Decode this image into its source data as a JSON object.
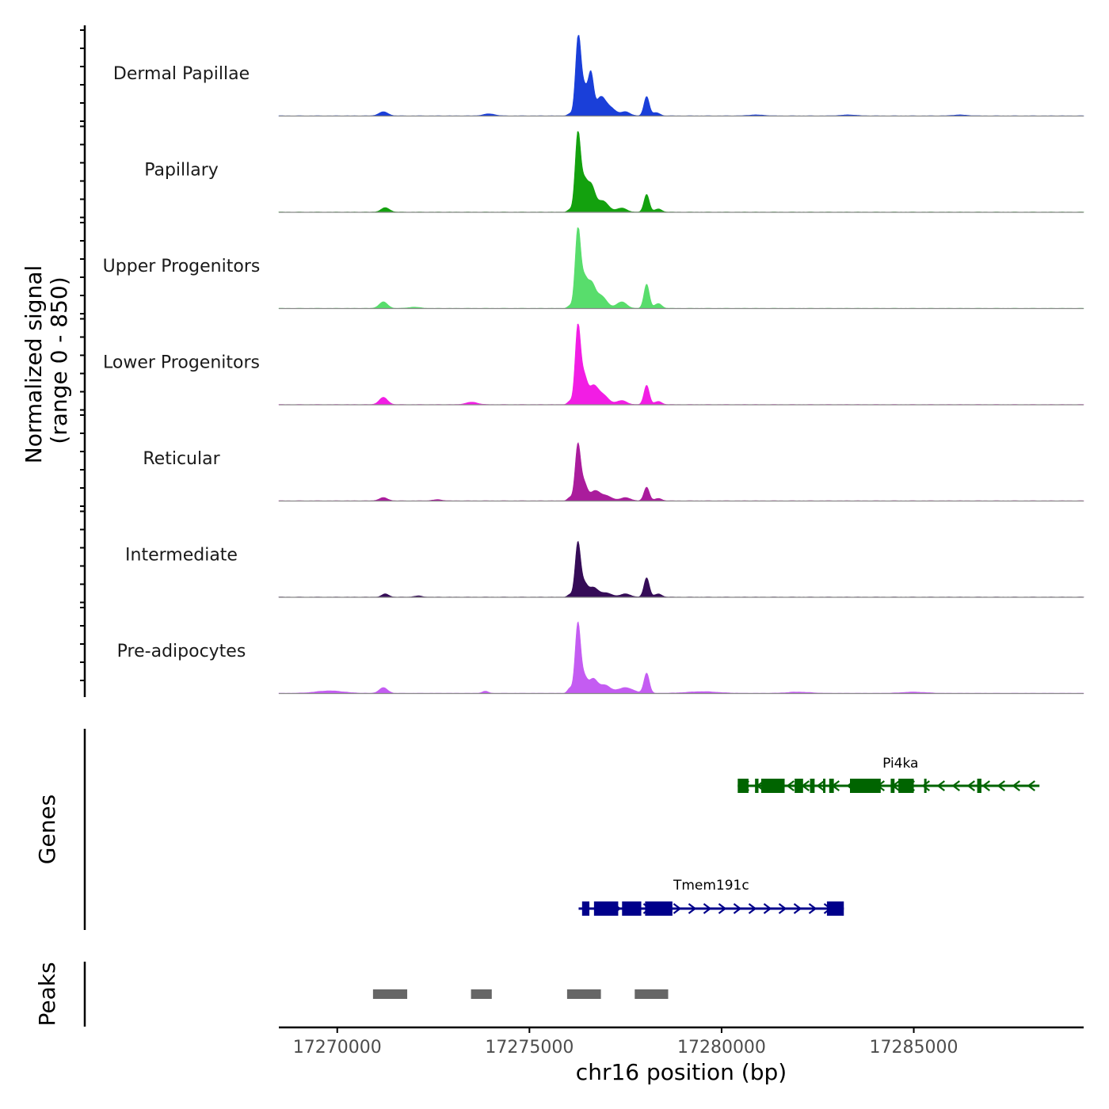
{
  "chart_data": {
    "type": "area",
    "title": "",
    "xlabel": "chr16 position (bp)",
    "ylabel": "Normalized signal\n(range 0 - 850)",
    "signal_range": [
      0,
      850
    ],
    "xlim": [
      16868480,
      16889420
    ],
    "x_tick_values": [
      16870000,
      16875000,
      16880000,
      16885000
    ],
    "x_tick_labels": [
      "17270000",
      "17275000",
      "17280000",
      "17285000"
    ],
    "tracks": [
      {
        "name": "Dermal Papillae",
        "color": "#1a3fd9",
        "peaks": [
          [
            16871200,
            0.05,
            120
          ],
          [
            16873950,
            0.025,
            150
          ],
          [
            16876050,
            0.025,
            60
          ],
          [
            16876270,
            0.98,
            70
          ],
          [
            16876430,
            0.33,
            80
          ],
          [
            16876600,
            0.5,
            70
          ],
          [
            16876850,
            0.22,
            120
          ],
          [
            16877100,
            0.1,
            140
          ],
          [
            16877500,
            0.05,
            120
          ],
          [
            16878050,
            0.24,
            70
          ],
          [
            16878300,
            0.04,
            90
          ],
          [
            16880900,
            0.012,
            200
          ],
          [
            16883300,
            0.012,
            200
          ],
          [
            16886200,
            0.012,
            180
          ]
        ],
        "base": 0.004
      },
      {
        "name": "Papillary",
        "color": "#13a10e",
        "peaks": [
          [
            16871250,
            0.055,
            110
          ],
          [
            16876050,
            0.03,
            60
          ],
          [
            16876260,
            0.97,
            70
          ],
          [
            16876420,
            0.33,
            80
          ],
          [
            16876600,
            0.32,
            100
          ],
          [
            16876900,
            0.14,
            150
          ],
          [
            16877400,
            0.05,
            130
          ],
          [
            16878050,
            0.22,
            70
          ],
          [
            16878350,
            0.04,
            90
          ]
        ],
        "base": 0.004
      },
      {
        "name": "Upper Progenitors",
        "color": "#58dd6c",
        "peaks": [
          [
            16871200,
            0.08,
            110
          ],
          [
            16872000,
            0.015,
            150
          ],
          [
            16876050,
            0.03,
            60
          ],
          [
            16876260,
            0.98,
            70
          ],
          [
            16876420,
            0.32,
            80
          ],
          [
            16876600,
            0.28,
            100
          ],
          [
            16876850,
            0.16,
            150
          ],
          [
            16877400,
            0.08,
            130
          ],
          [
            16878050,
            0.3,
            70
          ],
          [
            16878350,
            0.06,
            90
          ]
        ],
        "base": 0.004
      },
      {
        "name": "Lower Progenitors",
        "color": "#f21de4",
        "peaks": [
          [
            16871200,
            0.09,
            110
          ],
          [
            16873500,
            0.03,
            150
          ],
          [
            16876050,
            0.04,
            60
          ],
          [
            16876260,
            0.97,
            70
          ],
          [
            16876420,
            0.32,
            80
          ],
          [
            16876650,
            0.21,
            120
          ],
          [
            16876900,
            0.12,
            150
          ],
          [
            16877400,
            0.05,
            130
          ],
          [
            16878050,
            0.24,
            70
          ],
          [
            16878350,
            0.04,
            90
          ]
        ],
        "base": 0.004
      },
      {
        "name": "Reticular",
        "color": "#aa1c9c",
        "peaks": [
          [
            16871200,
            0.04,
            110
          ],
          [
            16872600,
            0.015,
            120
          ],
          [
            16876050,
            0.04,
            60
          ],
          [
            16876260,
            0.69,
            70
          ],
          [
            16876420,
            0.21,
            80
          ],
          [
            16876700,
            0.12,
            130
          ],
          [
            16877000,
            0.06,
            150
          ],
          [
            16877500,
            0.04,
            130
          ],
          [
            16878050,
            0.17,
            70
          ],
          [
            16878350,
            0.03,
            90
          ]
        ],
        "base": 0.004
      },
      {
        "name": "Intermediate",
        "color": "#350c57",
        "peaks": [
          [
            16871250,
            0.04,
            90
          ],
          [
            16872100,
            0.015,
            100
          ],
          [
            16876050,
            0.03,
            60
          ],
          [
            16876260,
            0.67,
            70
          ],
          [
            16876420,
            0.15,
            80
          ],
          [
            16876650,
            0.12,
            130
          ],
          [
            16877000,
            0.05,
            150
          ],
          [
            16877500,
            0.04,
            130
          ],
          [
            16878050,
            0.24,
            70
          ],
          [
            16878350,
            0.04,
            90
          ]
        ],
        "base": 0.004
      },
      {
        "name": "Pre-adipocytes",
        "color": "#c45cf2",
        "peaks": [
          [
            16869800,
            0.03,
            350
          ],
          [
            16871200,
            0.07,
            110
          ],
          [
            16873850,
            0.025,
            80
          ],
          [
            16876050,
            0.06,
            60
          ],
          [
            16876260,
            0.86,
            70
          ],
          [
            16876420,
            0.19,
            80
          ],
          [
            16876650,
            0.17,
            110
          ],
          [
            16876950,
            0.1,
            150
          ],
          [
            16877500,
            0.07,
            200
          ],
          [
            16878050,
            0.25,
            70
          ],
          [
            16879500,
            0.02,
            400
          ],
          [
            16882000,
            0.015,
            300
          ],
          [
            16885000,
            0.015,
            300
          ]
        ],
        "base": 0.005
      }
    ],
    "genes": [
      {
        "name": "Pi4ka",
        "strand": "-",
        "color": "#006400",
        "start": 16880420,
        "end": 16888270,
        "exons": [
          [
            16880420,
            16880700
          ],
          [
            16880870,
            16880960
          ],
          [
            16881030,
            16881640
          ],
          [
            16881900,
            16882120
          ],
          [
            16882300,
            16882420
          ],
          [
            16882640,
            16882700
          ],
          [
            16882800,
            16882920
          ],
          [
            16883340,
            16884140
          ],
          [
            16884400,
            16884500
          ],
          [
            16884600,
            16885000
          ],
          [
            16885270,
            16885330
          ],
          [
            16886650,
            16886760
          ]
        ]
      },
      {
        "name": "Tmem191c",
        "strand": "+",
        "color": "#00008b",
        "start": 16876280,
        "end": 16883180,
        "exons": [
          [
            16876370,
            16876560
          ],
          [
            16876680,
            16877310
          ],
          [
            16877410,
            16877910
          ],
          [
            16878010,
            16878720
          ],
          [
            16882740,
            16883180
          ]
        ]
      }
    ],
    "peaks_track": [
      [
        16870930,
        16871820
      ],
      [
        16873480,
        16874020
      ],
      [
        16875980,
        16876860
      ],
      [
        16877740,
        16878610
      ]
    ],
    "track_labels": {
      "genes": "Genes",
      "peaks": "Peaks"
    }
  }
}
